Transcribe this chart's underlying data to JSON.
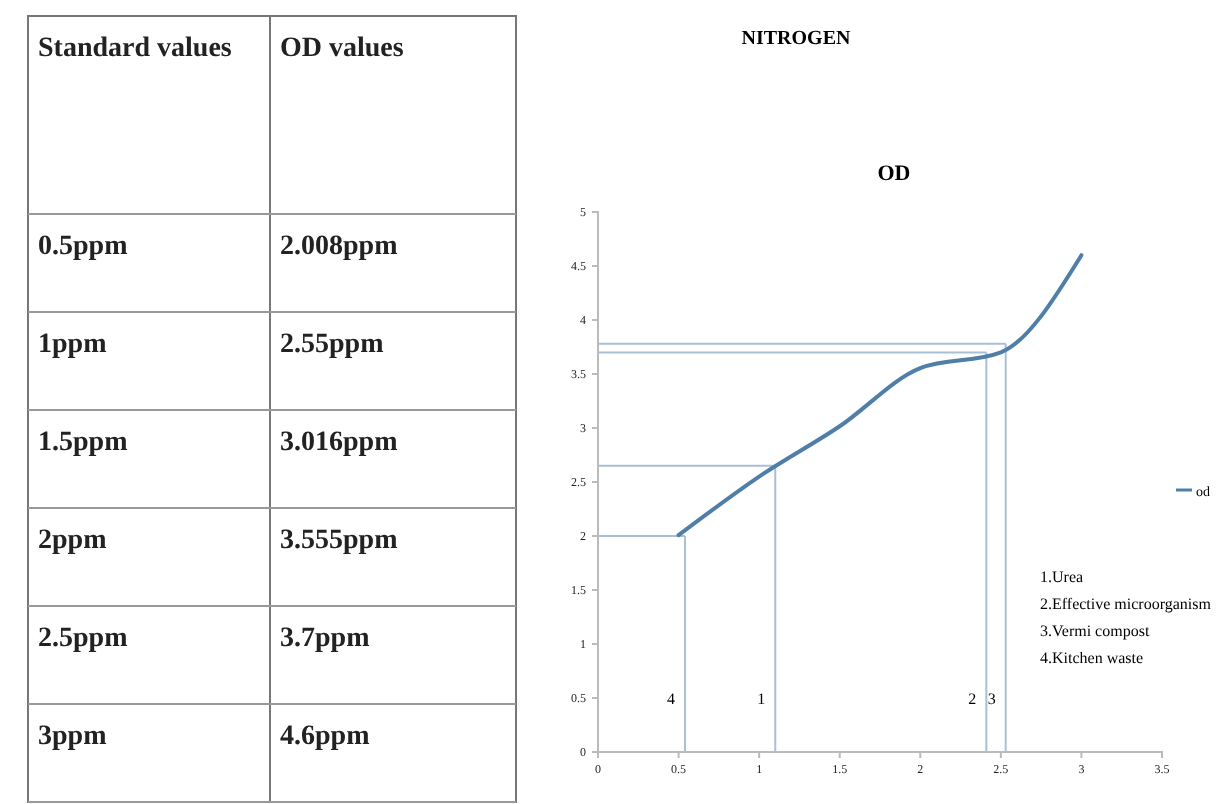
{
  "chart_data": {
    "type": "line",
    "title": "NITROGEN",
    "subtitle": "OD",
    "x": [
      0.5,
      1,
      1.5,
      2,
      2.5,
      3
    ],
    "series": [
      {
        "name": "od",
        "color": "#4f7fa8",
        "values": [
          2.008,
          2.55,
          3.016,
          3.555,
          3.7,
          4.6
        ]
      }
    ],
    "xlim": [
      0,
      3.5
    ],
    "xticks": [
      0,
      0.5,
      1,
      1.5,
      2,
      2.5,
      3,
      3.5
    ],
    "ylim": [
      0,
      5
    ],
    "yticks": [
      0,
      0.5,
      1,
      1.5,
      2,
      2.5,
      3,
      3.5,
      4,
      4.5,
      5
    ],
    "ref_lines": [
      {
        "axis": "x",
        "value": 0.54,
        "color": "#a9bfd3"
      },
      {
        "axis": "x",
        "value": 1.1,
        "color": "#a9bfd3"
      },
      {
        "axis": "x",
        "value": 2.41,
        "color": "#a9bfd3"
      },
      {
        "axis": "x",
        "value": 2.53,
        "color": "#a9bfd3"
      },
      {
        "axis": "y",
        "value": 2.0,
        "color": "#a9bfd3"
      },
      {
        "axis": "y",
        "value": 2.65,
        "color": "#a9bfd3"
      },
      {
        "axis": "y",
        "value": 3.7,
        "color": "#a9bfd3"
      },
      {
        "axis": "y",
        "value": 3.78,
        "color": "#a9bfd3"
      }
    ],
    "annotations": [
      "Standard values",
      "OD values",
      "0.5ppm",
      "1ppm",
      "1.5ppm",
      "2ppm",
      "2.5ppm",
      "3ppm",
      "2.008ppm",
      "2.55ppm",
      "3.016ppm",
      "3.555ppm",
      "3.7ppm",
      "4.6ppm",
      "1.Urea",
      "2.Effective microorganism",
      "3.Vermi compost",
      "4.Kitchen waste",
      {
        "text": "4",
        "x": 0.54,
        "y": 0.5
      },
      {
        "text": "1",
        "x": 1.1,
        "y": 0.5
      },
      {
        "text": "2",
        "x": 2.41,
        "y": 0.5
      },
      {
        "text": "3",
        "x": 2.53,
        "y": 0.5
      }
    ],
    "legend": "right",
    "grid": false,
    "marker": "none",
    "line_style": "solid"
  }
}
